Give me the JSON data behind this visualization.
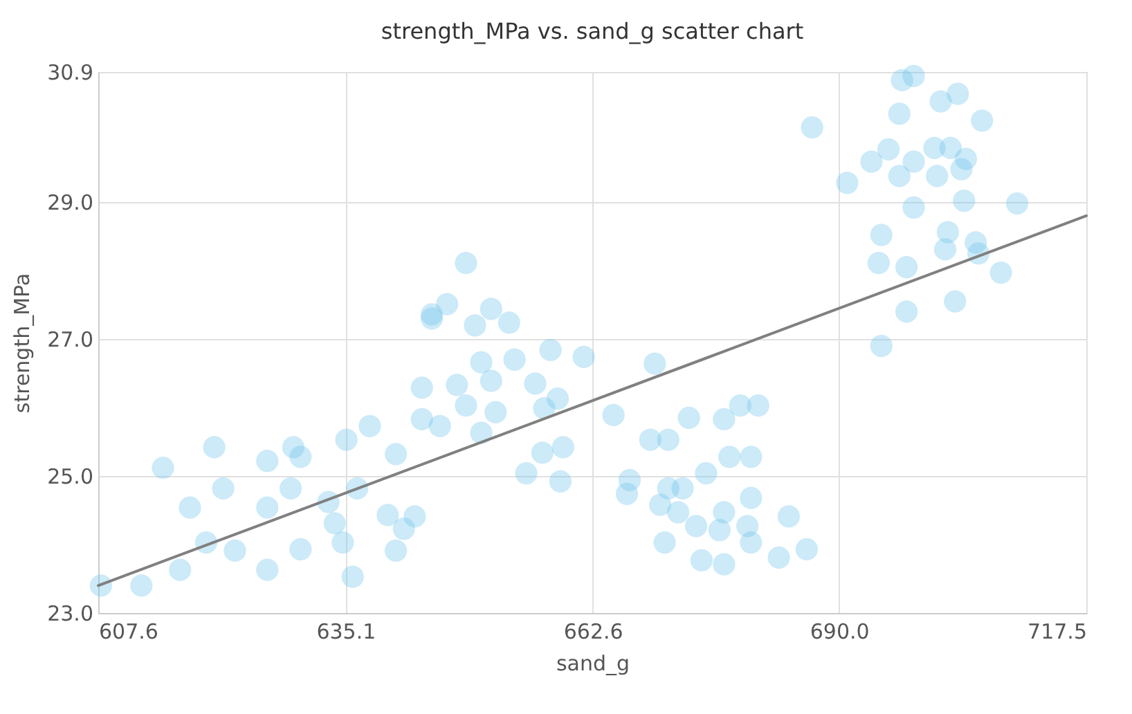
{
  "chart_data": {
    "type": "scatter",
    "title": "strength_MPa vs. sand_g scatter chart",
    "xlabel": "sand_g",
    "ylabel": "strength_MPa",
    "xlim": [
      607.6,
      717.5
    ],
    "xticks": [
      607.6,
      635.1,
      662.6,
      {
        "value": 690,
        "label": "690.0"
      },
      717.5
    ],
    "ylim": [
      23,
      30.9
    ],
    "yticks": [
      {
        "value": 23,
        "label": "23.0"
      },
      {
        "value": 25,
        "label": "25.0"
      },
      {
        "value": 27,
        "label": "27.0"
      },
      {
        "value": 29,
        "label": "29.0"
      },
      30.9
    ],
    "grid": true,
    "marker": "circle",
    "series": [
      {
        "color": "#6ec3ec",
        "x": [
          607.9,
          612.4,
          616.7,
          614.8,
          617.8,
          620.5,
          621.5,
          619.6,
          622.8,
          626.4,
          626.4,
          629.3,
          630.1,
          629.0,
          626.4,
          630.1,
          634.8,
          635.9,
          633.9,
          633.2,
          636.4,
          635.2,
          637.8,
          640.7,
          639.8,
          642.8,
          641.6,
          640.7,
          643.6,
          643.6,
          644.7,
          648.5,
          644.7,
          646.4,
          649.5,
          651.3,
          653.3,
          650.2,
          653.9,
          657.9,
          661.6,
          647.5,
          651.3,
          656.2,
          658.7,
          657.2,
          651.8,
          648.5,
          645.6,
          650.2,
          655.2,
          659.0,
          657.0,
          659.3,
          664.9,
          669.5,
          666.7,
          666.4,
          669.0,
          671.0,
          673.3,
          677.2,
          679.0,
          681.0,
          671.0,
          672.6,
          675.2,
          677.8,
          680.2,
          670.1,
          672.1,
          674.1,
          677.2,
          680.2,
          684.4,
          686.4,
          683.3,
          670.6,
          674.7,
          677.2,
          680.2,
          676.7,
          679.8,
          687.0,
          697.0,
          698.3,
          701.3,
          703.2,
          696.7,
          705.9,
          690.9,
          693.6,
          695.5,
          696.7,
          698.3,
          700.6,
          702.4,
          704.1,
          700.9,
          703.6,
          698.3,
          703.9,
          709.8,
          694.7,
          702.1,
          701.8,
          705.2,
          694.4,
          697.5,
          708.0,
          702.9,
          697.5,
          694.7,
          705.5
        ],
        "values": [
          23.4,
          23.4,
          23.63,
          25.12,
          24.54,
          25.42,
          24.82,
          24.03,
          23.91,
          23.63,
          25.22,
          25.42,
          25.28,
          24.82,
          24.54,
          23.93,
          24.03,
          23.53,
          24.31,
          24.62,
          24.82,
          25.53,
          25.73,
          25.32,
          24.43,
          24.41,
          24.23,
          23.91,
          26.29,
          25.83,
          27.3,
          28.11,
          27.36,
          27.51,
          27.2,
          27.44,
          27.24,
          26.66,
          26.7,
          26.84,
          26.74,
          26.33,
          26.39,
          26.35,
          26.13,
          25.99,
          25.93,
          26.03,
          25.73,
          25.63,
          25.04,
          24.92,
          25.34,
          25.42,
          25.89,
          26.64,
          24.94,
          24.74,
          25.53,
          25.53,
          25.85,
          25.83,
          26.03,
          26.03,
          24.82,
          24.82,
          25.04,
          25.28,
          25.28,
          24.58,
          24.47,
          24.27,
          24.47,
          24.68,
          24.41,
          23.93,
          23.81,
          24.03,
          23.77,
          23.71,
          24.03,
          24.21,
          24.27,
          30.09,
          30.78,
          30.84,
          30.47,
          30.58,
          30.29,
          30.19,
          29.28,
          29.59,
          29.77,
          29.38,
          29.59,
          29.79,
          29.79,
          29.63,
          29.38,
          29.48,
          28.92,
          29.02,
          28.98,
          28.52,
          28.56,
          28.31,
          28.41,
          28.11,
          28.05,
          27.97,
          27.55,
          27.4,
          26.9,
          28.25
        ]
      },
      {
        "type": "line",
        "marker": "none",
        "color": "#808080",
        "x": [
          607.6,
          717.5
        ],
        "values": [
          23.4,
          28.8
        ]
      }
    ]
  }
}
